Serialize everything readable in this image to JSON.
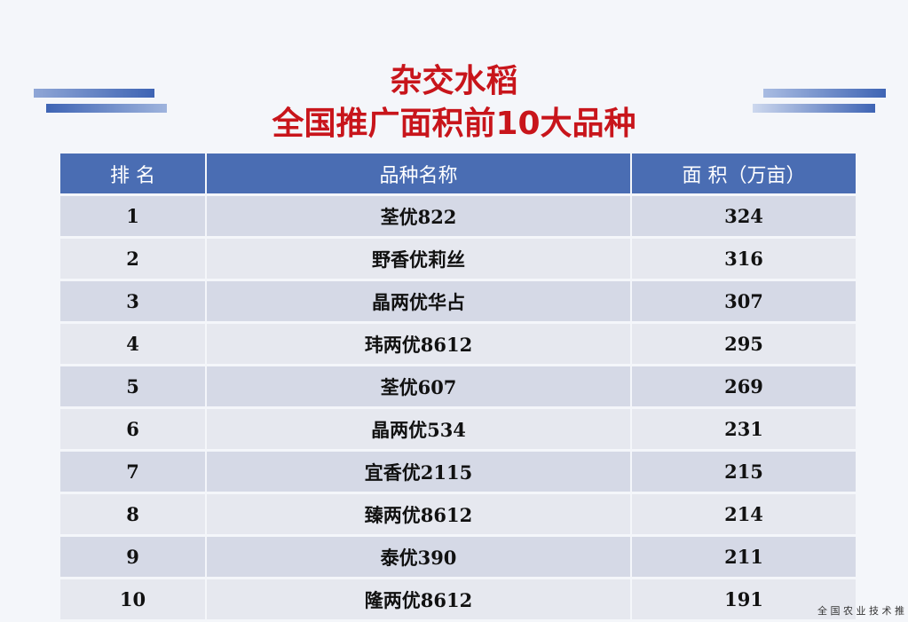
{
  "header": {
    "title_line1": "杂交水稻",
    "title_line2": "全国推广面积前10大品种"
  },
  "table": {
    "columns": [
      "排 名",
      "品种名称",
      "面 积（万亩）"
    ],
    "rows": [
      [
        1,
        "荃优822",
        324
      ],
      [
        2,
        "野香优莉丝",
        316
      ],
      [
        3,
        "晶两优华占",
        307
      ],
      [
        4,
        "玮两优8612",
        295
      ],
      [
        5,
        "荃优607",
        269
      ],
      [
        6,
        "晶两优534",
        231
      ],
      [
        7,
        "宜香优2115",
        215
      ],
      [
        8,
        "臻两优8612",
        214
      ],
      [
        9,
        "泰优390",
        211
      ],
      [
        10,
        "隆两优8612",
        191
      ]
    ]
  },
  "footer": {
    "source": "全 国 农 业 技 术 推"
  }
}
